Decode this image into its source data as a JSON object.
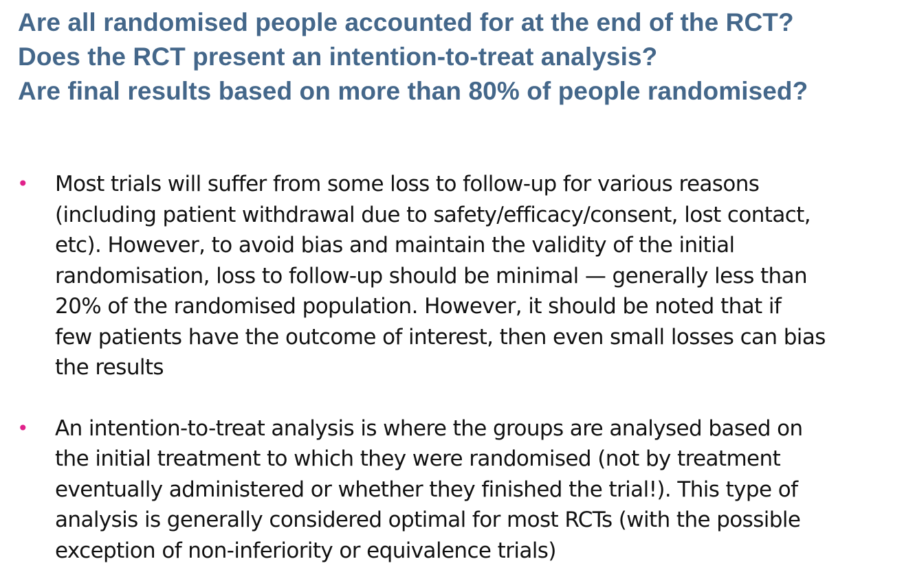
{
  "slide": {
    "title_lines": [
      "Are all randomised people accounted for at the end of the RCT?",
      "Does the RCT present an intention-to-treat analysis?",
      "Are final results based on more than 80% of people randomised?"
    ],
    "bullet_symbol": "•",
    "bullets": [
      {
        "lines": [
          "Most trials will suffer from some loss to follow-up for various reasons",
          "(including patient withdrawal due to safety/efficacy/consent, lost contact,",
          "etc). However, to avoid bias and maintain the validity of the initial",
          "randomisation, loss to follow-up should be minimal — generally less than",
          "20% of the randomised population. However, it should be noted that if",
          "few patients have the outcome of interest, then even small losses can bias",
          "the results"
        ]
      },
      {
        "lines": [
          "An intention-to-treat analysis is where the groups are analysed based on",
          "the initial treatment to which they were randomised (not by treatment",
          "eventually administered or whether they finished the trial!). This type of",
          "analysis is generally considered optimal for most RCTs (with the possible",
          "exception of non-inferiority or equivalence trials)"
        ]
      }
    ]
  },
  "colors": {
    "title": "#44678a",
    "bullet_marker": "#e0218a",
    "body_text": "#111111",
    "background": "#ffffff"
  }
}
